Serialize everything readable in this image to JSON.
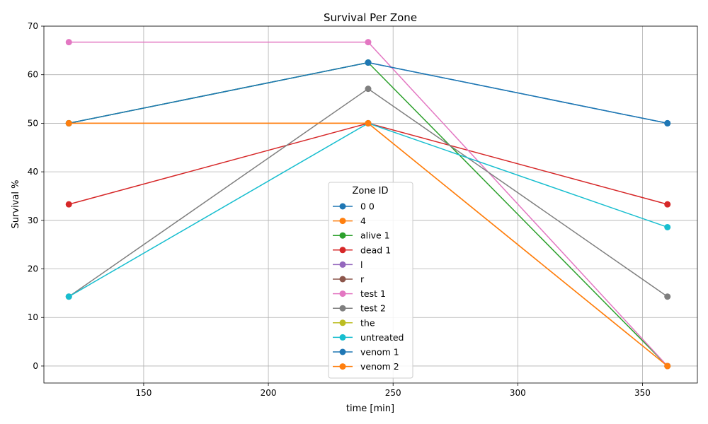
{
  "chart_data": {
    "type": "line",
    "title": "Survival Per Zone",
    "xlabel": "time [min]",
    "ylabel": "Survival %",
    "xlim": [
      110,
      372
    ],
    "ylim": [
      -3.5,
      70
    ],
    "xticks": [
      150,
      200,
      250,
      300,
      350
    ],
    "yticks": [
      0,
      10,
      20,
      30,
      40,
      50,
      60,
      70
    ],
    "grid": true,
    "legend": {
      "title": "Zone ID",
      "placement": "lower center"
    },
    "x": [
      120,
      240,
      360
    ],
    "series": [
      {
        "name": "0 0",
        "color": "#1f77b4",
        "values": [
          50,
          62.5,
          50
        ]
      },
      {
        "name": "4",
        "color": "#ff7f0e",
        "values": [
          50,
          50,
          0
        ]
      },
      {
        "name": "alive 1",
        "color": "#2ca02c",
        "values": [
          50,
          62.5,
          0
        ]
      },
      {
        "name": "dead 1",
        "color": "#d62728",
        "values": [
          33.3,
          50,
          33.3
        ]
      },
      {
        "name": "l",
        "color": "#9467bd",
        "values": [
          null,
          null,
          null
        ]
      },
      {
        "name": "r",
        "color": "#8c564b",
        "values": [
          null,
          null,
          null
        ]
      },
      {
        "name": "test 1",
        "color": "#e377c2",
        "values": [
          66.7,
          66.7,
          0
        ]
      },
      {
        "name": "test 2",
        "color": "#7f7f7f",
        "values": [
          14.3,
          57.1,
          14.3
        ]
      },
      {
        "name": "the",
        "color": "#bcbd22",
        "values": [
          null,
          null,
          null
        ]
      },
      {
        "name": "untreated",
        "color": "#17becf",
        "values": [
          14.3,
          50,
          28.6
        ]
      },
      {
        "name": "venom 1",
        "color": "#1f77b4",
        "values": [
          50,
          62.5,
          50
        ]
      },
      {
        "name": "venom 2",
        "color": "#ff7f0e",
        "values": [
          50,
          50,
          0
        ]
      }
    ]
  }
}
